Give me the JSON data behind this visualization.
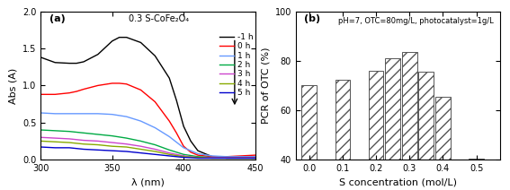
{
  "panel_a": {
    "title": "0.3 S-CoFe₂O₄",
    "xlabel": "λ (nm)",
    "ylabel": "Abs (A)",
    "xlim": [
      300,
      450
    ],
    "ylim": [
      0.0,
      2.0
    ],
    "yticks": [
      0.0,
      0.5,
      1.0,
      1.5,
      2.0
    ],
    "xticks": [
      300,
      350,
      400,
      450
    ],
    "label": "(a)",
    "curves": [
      {
        "label": "-1 h",
        "color": "#000000",
        "x": [
          300,
          310,
          320,
          325,
          330,
          340,
          350,
          355,
          360,
          370,
          380,
          390,
          395,
          400,
          405,
          410,
          420,
          430,
          440,
          450
        ],
        "y": [
          1.38,
          1.31,
          1.3,
          1.3,
          1.32,
          1.42,
          1.6,
          1.65,
          1.65,
          1.58,
          1.4,
          1.1,
          0.8,
          0.45,
          0.25,
          0.12,
          0.04,
          0.02,
          0.02,
          0.02
        ]
      },
      {
        "label": "0 h",
        "color": "#ff0000",
        "x": [
          300,
          310,
          320,
          325,
          330,
          340,
          350,
          355,
          360,
          370,
          380,
          390,
          395,
          400,
          405,
          410,
          420,
          430,
          440,
          450
        ],
        "y": [
          0.88,
          0.88,
          0.9,
          0.92,
          0.95,
          1.0,
          1.03,
          1.03,
          1.02,
          0.94,
          0.78,
          0.52,
          0.36,
          0.18,
          0.1,
          0.06,
          0.04,
          0.04,
          0.05,
          0.06
        ]
      },
      {
        "label": "1 h",
        "color": "#6699ff",
        "x": [
          300,
          310,
          320,
          325,
          330,
          340,
          350,
          360,
          370,
          380,
          390,
          400,
          410,
          420,
          430,
          440,
          450
        ],
        "y": [
          0.63,
          0.62,
          0.62,
          0.62,
          0.62,
          0.62,
          0.61,
          0.58,
          0.52,
          0.43,
          0.31,
          0.16,
          0.08,
          0.05,
          0.04,
          0.04,
          0.04
        ]
      },
      {
        "label": "2 h",
        "color": "#00aa44",
        "x": [
          300,
          310,
          320,
          325,
          330,
          340,
          350,
          360,
          370,
          380,
          390,
          400,
          410,
          420,
          430,
          440,
          450
        ],
        "y": [
          0.4,
          0.39,
          0.38,
          0.37,
          0.36,
          0.34,
          0.32,
          0.29,
          0.25,
          0.2,
          0.13,
          0.07,
          0.04,
          0.03,
          0.03,
          0.03,
          0.03
        ]
      },
      {
        "label": "3 h",
        "color": "#cc44cc",
        "x": [
          300,
          310,
          320,
          325,
          330,
          340,
          350,
          360,
          370,
          380,
          390,
          400,
          410,
          420,
          430,
          440,
          450
        ],
        "y": [
          0.3,
          0.29,
          0.28,
          0.27,
          0.26,
          0.25,
          0.23,
          0.21,
          0.18,
          0.14,
          0.09,
          0.05,
          0.03,
          0.03,
          0.03,
          0.03,
          0.03
        ]
      },
      {
        "label": "4 h",
        "color": "#88aa00",
        "x": [
          300,
          310,
          320,
          325,
          330,
          340,
          350,
          360,
          370,
          380,
          390,
          400,
          410,
          420,
          430,
          440,
          450
        ],
        "y": [
          0.25,
          0.24,
          0.23,
          0.22,
          0.21,
          0.2,
          0.18,
          0.17,
          0.14,
          0.11,
          0.07,
          0.04,
          0.03,
          0.02,
          0.02,
          0.02,
          0.02
        ]
      },
      {
        "label": "5 h",
        "color": "#0000cc",
        "x": [
          300,
          310,
          320,
          325,
          330,
          340,
          350,
          360,
          370,
          380,
          390,
          400,
          410,
          420,
          430,
          440,
          450
        ],
        "y": [
          0.17,
          0.16,
          0.16,
          0.15,
          0.14,
          0.13,
          0.12,
          0.11,
          0.09,
          0.07,
          0.05,
          0.03,
          0.02,
          0.02,
          0.02,
          0.02,
          0.02
        ]
      }
    ]
  },
  "panel_b": {
    "title": "pH=7, OTC=80mg/L, photocatalyst=1g/L",
    "xlabel": "S concentration (mol/L)",
    "ylabel": "PCR of OTC (%)",
    "label": "(b)",
    "ylim": [
      40,
      100
    ],
    "yticks": [
      40,
      60,
      80,
      100
    ],
    "x_positions": [
      0.0,
      0.1,
      0.2,
      0.25,
      0.3,
      0.35,
      0.4,
      0.5
    ],
    "values": [
      70.0,
      72.5,
      76.0,
      81.0,
      83.5,
      75.5,
      65.5,
      40.5
    ],
    "bar_width": 0.045,
    "bar_color": "white",
    "bar_edgecolor": "#555555",
    "hatch": "///",
    "xlim": [
      -0.04,
      0.57
    ],
    "xticks": [
      0.0,
      0.1,
      0.2,
      0.3,
      0.4,
      0.5
    ],
    "xticklabels": [
      "0.0",
      "0.1",
      "0.2",
      "0.3",
      "0.4",
      "0.5"
    ]
  }
}
